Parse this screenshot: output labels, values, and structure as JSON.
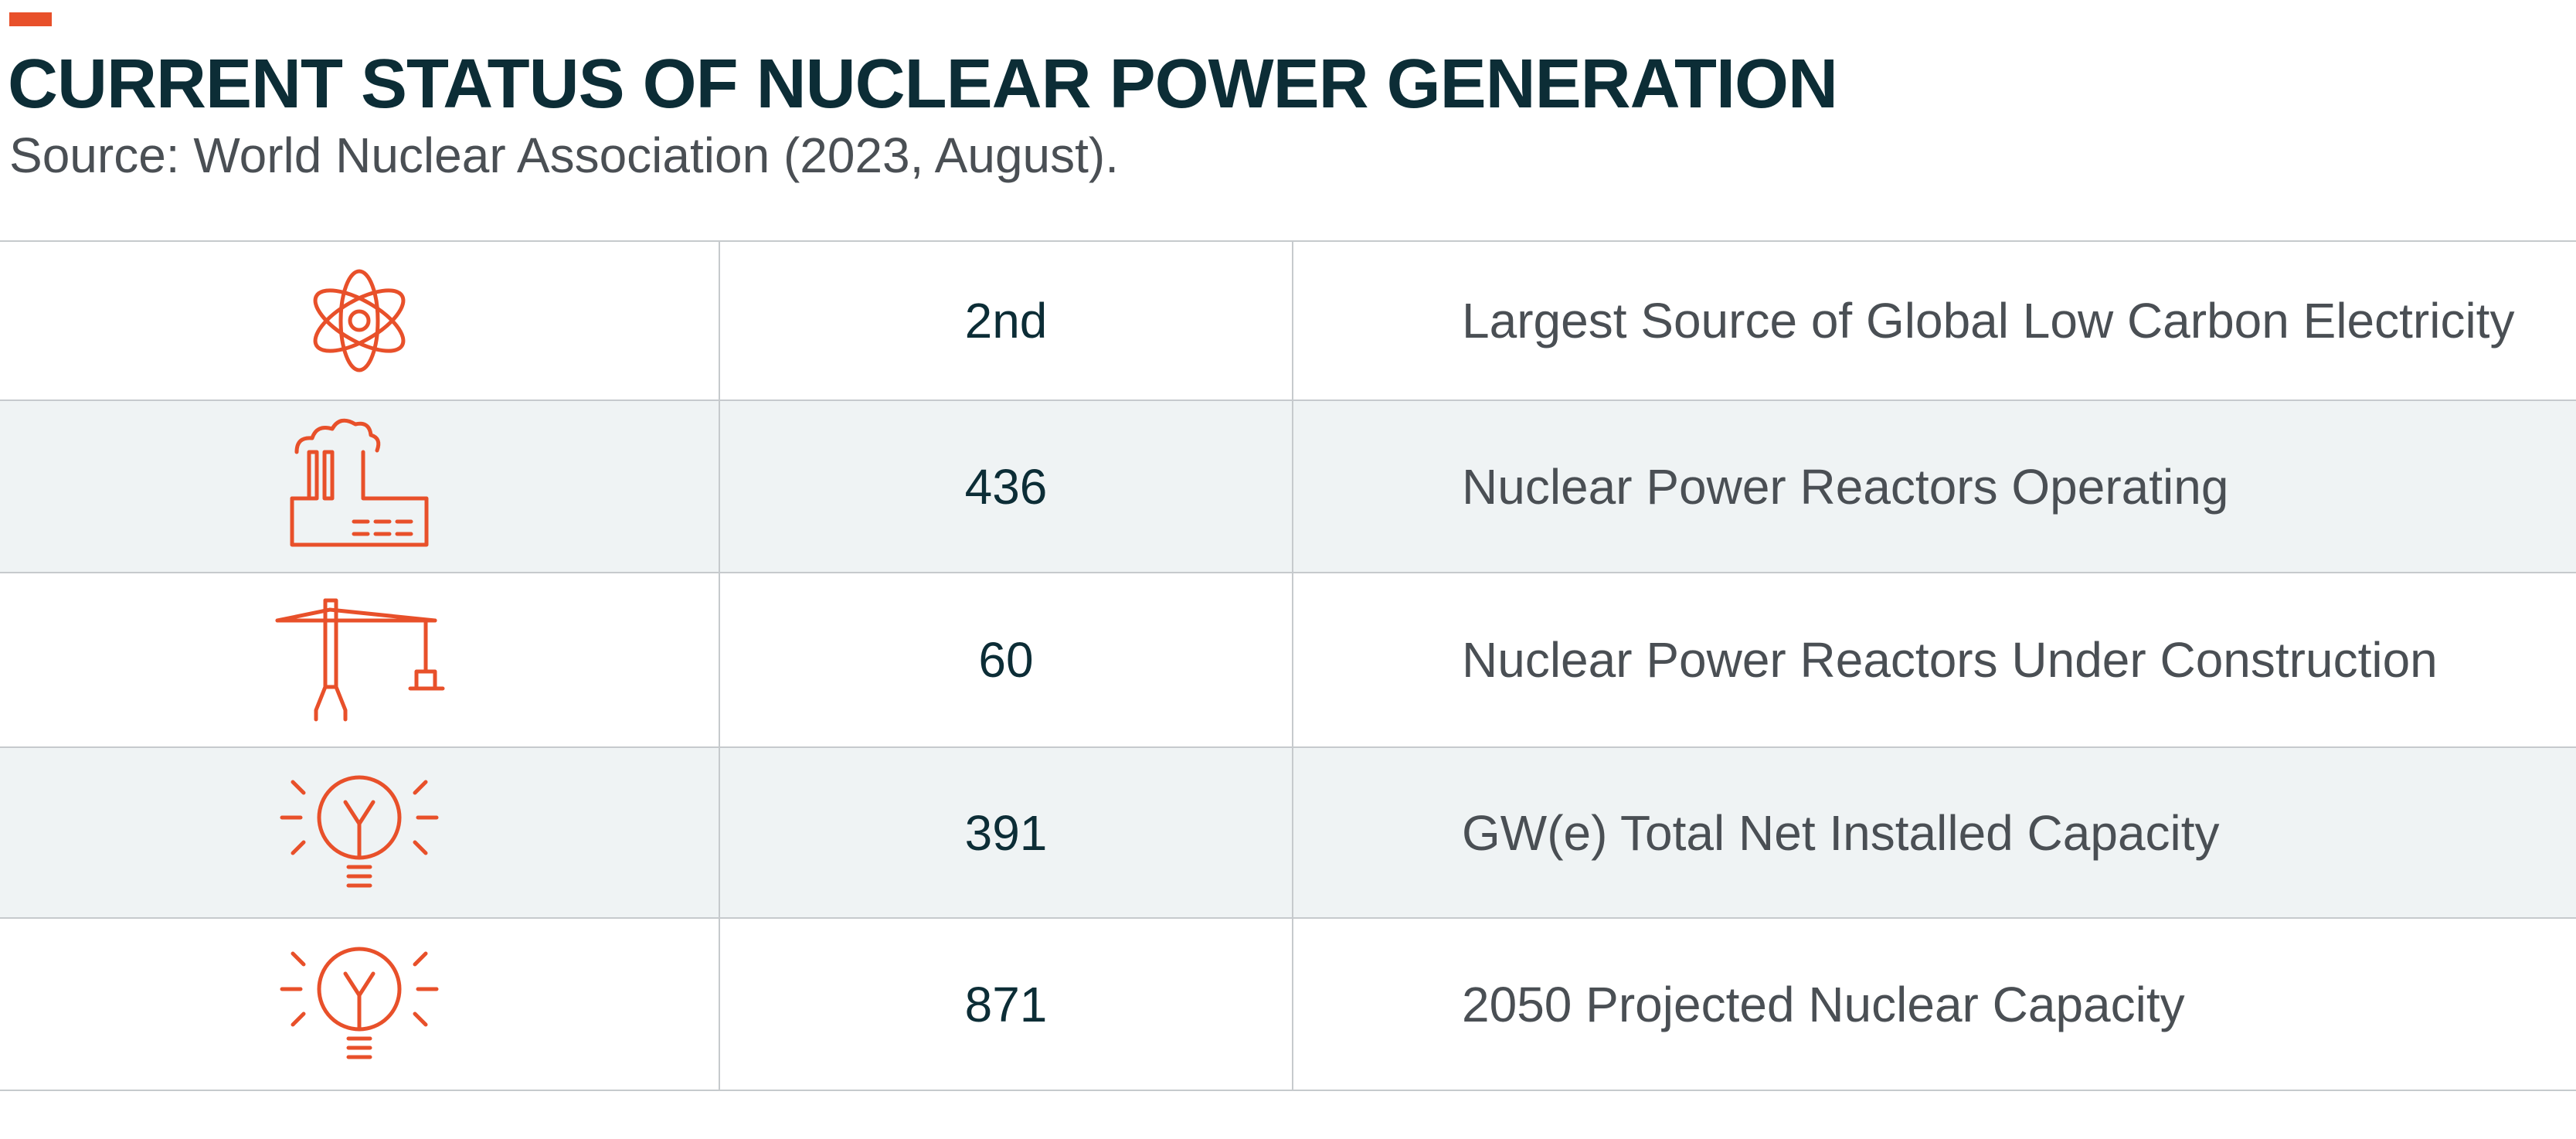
{
  "header": {
    "title": "CURRENT STATUS OF NUCLEAR POWER GENERATION",
    "subtitle": "Source: World Nuclear Association (2023, August)."
  },
  "colors": {
    "accent": "#e8502a",
    "title": "#0c2d36",
    "text": "#4a4f54",
    "row_shade": "#eff3f4",
    "divider": "#c6cacd"
  },
  "rows": [
    {
      "icon": "atom-icon",
      "value": "2nd",
      "description": "Largest Source of Global Low Carbon Electricity"
    },
    {
      "icon": "power-plant-icon",
      "value": "436",
      "description": "Nuclear Power Reactors Operating"
    },
    {
      "icon": "construction-crane-icon",
      "value": "60",
      "description": "Nuclear Power Reactors Under Construction"
    },
    {
      "icon": "light-bulb-icon",
      "value": "391",
      "description": "GW(e) Total Net Installed Capacity"
    },
    {
      "icon": "light-bulb-icon",
      "value": "871",
      "description": "2050 Projected Nuclear Capacity"
    }
  ]
}
